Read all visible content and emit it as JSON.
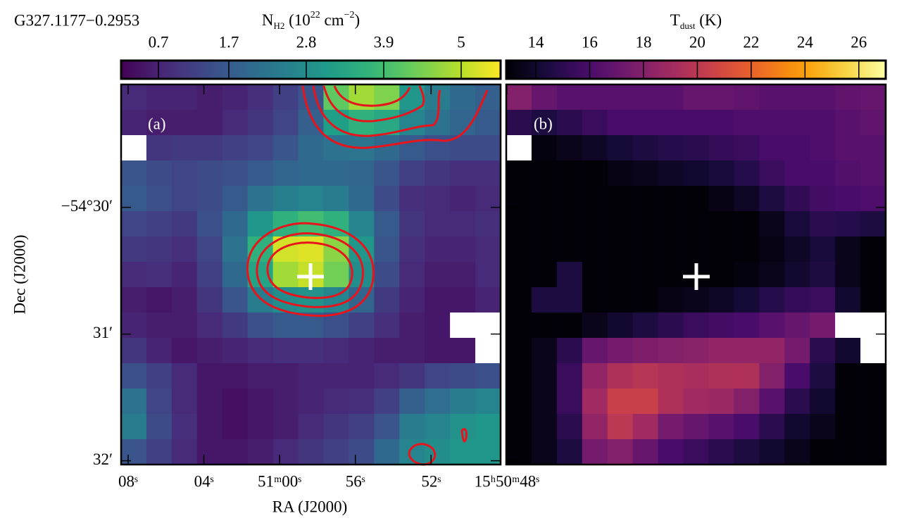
{
  "chart_data": [
    {
      "type": "heatmap",
      "title": "G327.1177−0.2953",
      "panel_label": "(a)",
      "colorbar_label": [
        {
          "text": "N"
        },
        {
          "text": "H2",
          "script": "sub"
        },
        {
          "text": " (10"
        },
        {
          "text": "22",
          "script": "sup"
        },
        {
          "text": " cm"
        },
        {
          "text": "−2",
          "script": "sup"
        },
        {
          "text": ")"
        }
      ],
      "colormap": "viridis",
      "zlim": [
        0.17,
        5.56
      ],
      "zticks": [
        0.7,
        1.7,
        2.8,
        3.9,
        5.0
      ],
      "xlabel": "RA (J2000)",
      "ylabel": "Dec (J2000)",
      "xlim": [
        68.37,
        48.33
      ],
      "xticks": [
        {
          "value": 68,
          "label": "08ˢ"
        },
        {
          "value": 64,
          "label": "04ˢ"
        },
        {
          "value": 60,
          "label": "51ᵐ00ˢ"
        },
        {
          "value": 56,
          "label": "56ˢ"
        },
        {
          "value": 52,
          "label": "52ˢ"
        },
        {
          "value": 48,
          "label": "15ʰ50ᵐ48ˢ"
        }
      ],
      "ylim": [
        29.03,
        32.03
      ],
      "yticks": [
        {
          "value": 30,
          "label": "−54°30′"
        },
        {
          "value": 31,
          "label": "31′"
        },
        {
          "value": 32,
          "label": "32′"
        }
      ],
      "z": [
        [
          0.8,
          0.7,
          0.7,
          0.6,
          0.7,
          0.9,
          1.2,
          1.6,
          4.2,
          4.8,
          4.5,
          3.0,
          2.4,
          2.0,
          1.8
        ],
        [
          0.7,
          0.6,
          0.6,
          0.6,
          0.8,
          1.0,
          1.3,
          1.8,
          3.2,
          3.6,
          3.4,
          2.6,
          2.2,
          1.9,
          1.7
        ],
        [
          null,
          1.0,
          1.1,
          1.1,
          1.2,
          1.3,
          1.6,
          2.0,
          2.2,
          2.3,
          2.0,
          1.7,
          1.5,
          1.4,
          1.4
        ],
        [
          1.6,
          1.4,
          1.3,
          1.4,
          1.5,
          1.7,
          1.9,
          2.0,
          2.0,
          1.9,
          1.6,
          1.2,
          1.0,
          0.9,
          0.9
        ],
        [
          1.7,
          1.5,
          1.3,
          1.4,
          1.7,
          2.2,
          2.5,
          2.6,
          2.4,
          2.0,
          1.4,
          0.9,
          0.8,
          0.7,
          0.8
        ],
        [
          1.3,
          1.2,
          1.1,
          1.5,
          2.0,
          3.0,
          3.6,
          3.9,
          3.6,
          2.6,
          1.7,
          1.0,
          0.8,
          0.8,
          0.9
        ],
        [
          1.1,
          1.0,
          0.9,
          1.3,
          2.2,
          3.6,
          5.2,
          5.3,
          4.6,
          3.0,
          1.6,
          0.9,
          0.7,
          0.7,
          0.8
        ],
        [
          0.8,
          0.9,
          0.7,
          1.2,
          2.0,
          3.3,
          4.8,
          5.1,
          4.4,
          2.8,
          1.4,
          0.8,
          0.6,
          0.6,
          0.8
        ],
        [
          0.6,
          0.5,
          0.6,
          1.0,
          1.6,
          2.4,
          2.8,
          2.9,
          2.6,
          1.9,
          1.1,
          0.7,
          0.5,
          0.5,
          0.7
        ],
        [
          0.7,
          0.6,
          0.6,
          0.8,
          1.1,
          1.5,
          1.7,
          1.7,
          1.5,
          1.2,
          0.9,
          0.6,
          0.5,
          null,
          null
        ],
        [
          1.0,
          0.7,
          0.5,
          0.6,
          0.7,
          0.8,
          0.9,
          0.9,
          0.8,
          0.7,
          0.6,
          0.6,
          0.5,
          0.5,
          null
        ],
        [
          1.5,
          1.2,
          0.8,
          0.5,
          0.5,
          0.6,
          0.6,
          0.7,
          0.7,
          0.7,
          0.8,
          1.0,
          1.3,
          1.4,
          1.5
        ],
        [
          2.2,
          1.3,
          0.8,
          0.5,
          0.4,
          0.5,
          0.6,
          0.7,
          0.8,
          0.9,
          1.2,
          1.8,
          2.1,
          2.4,
          2.6
        ],
        [
          2.4,
          1.4,
          0.9,
          0.5,
          0.4,
          0.5,
          0.6,
          0.8,
          1.0,
          1.2,
          1.6,
          2.4,
          2.6,
          2.9,
          3.0
        ],
        [
          1.6,
          1.2,
          0.8,
          0.5,
          0.5,
          0.6,
          0.8,
          1.0,
          1.2,
          1.4,
          2.0,
          2.6,
          2.8,
          3.0,
          3.0
        ]
      ]
    },
    {
      "type": "heatmap",
      "panel_label": "(b)",
      "colorbar_label": [
        {
          "text": "T"
        },
        {
          "text": "dust",
          "script": "sub"
        },
        {
          "text": " (K)"
        }
      ],
      "colormap": "inferno",
      "zlim": [
        12.9,
        27.0
      ],
      "zticks": [
        14,
        16,
        18,
        20,
        22,
        24,
        26
      ],
      "z": [
        [
          18,
          17,
          16.5,
          16.5,
          16.5,
          16.5,
          16.5,
          17,
          17,
          16.8,
          16.5,
          16.5,
          16.5,
          16.8,
          17
        ],
        [
          15,
          14.5,
          15,
          15.5,
          16,
          16,
          16,
          16,
          16,
          16.2,
          16.2,
          16.2,
          16.2,
          16.5,
          16.8
        ],
        [
          null,
          13.2,
          13.5,
          13.8,
          14.2,
          14.5,
          14.8,
          15,
          15.3,
          15.5,
          16,
          16,
          16.2,
          16.5,
          16.5
        ],
        [
          13,
          13,
          13,
          13,
          13.3,
          13.5,
          13.8,
          14,
          14.3,
          14.8,
          15.5,
          16,
          16,
          16.3,
          16.5
        ],
        [
          13,
          13,
          13,
          13,
          13,
          13,
          13,
          13,
          13.3,
          13.8,
          14.5,
          15.2,
          15.8,
          16,
          16.2
        ],
        [
          13,
          13,
          13,
          13,
          13,
          13,
          13,
          13,
          13,
          13,
          13.5,
          14.3,
          15,
          14.8,
          14.5
        ],
        [
          13,
          13,
          13,
          13,
          13,
          13,
          13,
          13,
          13,
          13,
          13.3,
          13.8,
          14.3,
          13.5,
          13
        ],
        [
          13,
          13,
          14.5,
          13,
          13,
          13,
          13,
          13,
          13,
          13.2,
          13.5,
          14,
          14.5,
          13.5,
          13
        ],
        [
          13,
          14.5,
          14.5,
          13,
          13,
          13,
          13.3,
          13.5,
          13.8,
          14.2,
          14.8,
          15.3,
          15.5,
          14,
          13
        ],
        [
          13,
          13,
          13,
          13.5,
          14,
          14.5,
          15,
          15.5,
          15.8,
          16,
          16.5,
          17,
          17.5,
          null,
          null
        ],
        [
          13,
          13.5,
          15,
          17,
          17.5,
          17.8,
          18,
          18.2,
          18.5,
          18.5,
          18.5,
          17.5,
          15,
          14,
          null
        ],
        [
          13,
          13.5,
          15.5,
          18.5,
          19.5,
          19.8,
          19.5,
          19.3,
          19.5,
          19.5,
          18,
          16,
          14.5,
          13,
          13
        ],
        [
          13,
          13.5,
          15.5,
          19,
          20.5,
          20.5,
          19.5,
          19,
          18.8,
          18,
          16.5,
          15,
          14,
          13,
          13
        ],
        [
          13,
          13.5,
          15,
          18.5,
          20,
          19,
          17.5,
          17,
          16.5,
          16,
          15,
          14,
          13.5,
          13,
          13
        ],
        [
          13,
          13.5,
          14.5,
          17.5,
          18,
          17,
          16,
          15.5,
          15,
          14.5,
          14,
          13.5,
          13,
          13,
          13
        ]
      ]
    }
  ]
}
